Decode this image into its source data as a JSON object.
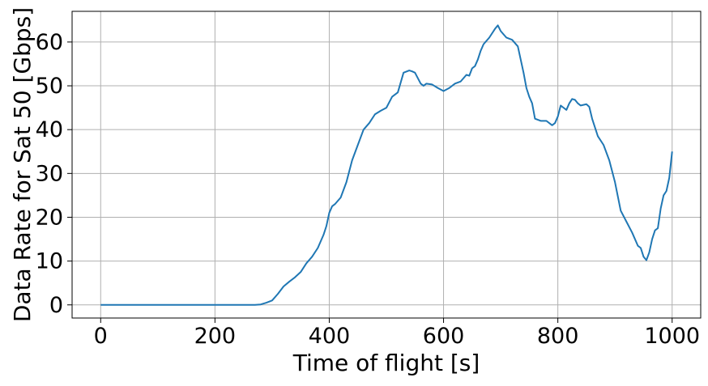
{
  "chart_data": {
    "type": "line",
    "title": "",
    "xlabel": "Time of flight [s]",
    "ylabel": "Data Rate for Sat 50 [Gbps]",
    "xlim": [
      -50,
      1050
    ],
    "ylim": [
      -3,
      67
    ],
    "xticks": [
      0,
      200,
      400,
      600,
      800,
      1000
    ],
    "yticks": [
      0,
      10,
      20,
      30,
      40,
      50,
      60
    ],
    "grid": true,
    "line_color": "#1f77b4",
    "series": [
      {
        "name": "Data Rate",
        "x": [
          0,
          100,
          200,
          270,
          280,
          290,
          300,
          310,
          320,
          330,
          340,
          350,
          360,
          370,
          380,
          390,
          395,
          400,
          405,
          410,
          420,
          430,
          440,
          450,
          460,
          470,
          480,
          490,
          500,
          510,
          520,
          530,
          540,
          545,
          550,
          560,
          565,
          570,
          580,
          590,
          600,
          610,
          620,
          630,
          640,
          645,
          650,
          655,
          660,
          665,
          670,
          680,
          690,
          695,
          700,
          710,
          720,
          730,
          740,
          745,
          750,
          755,
          760,
          770,
          780,
          790,
          795,
          800,
          805,
          810,
          815,
          820,
          825,
          830,
          835,
          840,
          850,
          855,
          860,
          870,
          880,
          890,
          900,
          910,
          920,
          930,
          940,
          945,
          950,
          955,
          960,
          965,
          970,
          975,
          980,
          985,
          990,
          995,
          1000
        ],
        "y": [
          0,
          0,
          0,
          0,
          0.1,
          0.5,
          1.0,
          2.5,
          4.2,
          5.3,
          6.3,
          7.5,
          9.5,
          11.0,
          13.0,
          16.0,
          18.0,
          21.0,
          22.5,
          23.0,
          24.5,
          28.0,
          33.0,
          36.5,
          40.0,
          41.5,
          43.5,
          44.3,
          45.0,
          47.5,
          48.5,
          53.0,
          53.5,
          53.3,
          53.0,
          50.5,
          50.0,
          50.5,
          50.3,
          49.5,
          48.8,
          49.5,
          50.5,
          51.0,
          52.5,
          52.3,
          54.0,
          54.5,
          56.0,
          58.0,
          59.5,
          61.0,
          63.0,
          63.8,
          62.5,
          61.0,
          60.5,
          59.0,
          53.0,
          49.5,
          47.5,
          46.0,
          42.5,
          42.0,
          42.0,
          41.0,
          41.5,
          43.0,
          45.5,
          45.0,
          44.5,
          46.0,
          47.0,
          46.8,
          46.0,
          45.5,
          45.8,
          45.2,
          42.5,
          38.5,
          36.5,
          33.0,
          28.0,
          21.5,
          19.0,
          16.5,
          13.5,
          13.0,
          11.0,
          10.2,
          12.0,
          15.0,
          17.0,
          17.5,
          22.0,
          25.0,
          26.0,
          29.0,
          35.0
        ]
      }
    ]
  }
}
